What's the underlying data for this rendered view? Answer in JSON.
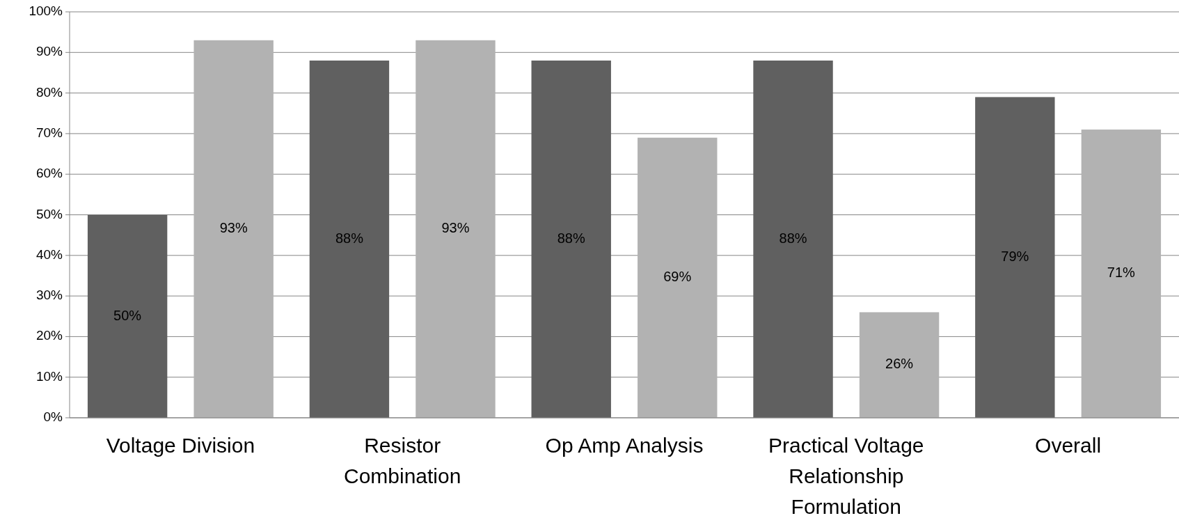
{
  "chart_data": {
    "type": "bar",
    "categories": [
      "Voltage Division",
      "Resistor Combination",
      "Op Amp Analysis",
      "Practical Voltage Relationship Formulation",
      "Overall"
    ],
    "series": [
      {
        "color": "#606060",
        "values": [
          50,
          88,
          88,
          88,
          79
        ],
        "value_labels": [
          "50%",
          "88%",
          "88%",
          "88%",
          "79%"
        ]
      },
      {
        "color": "#b2b2b2",
        "values": [
          93,
          93,
          69,
          26,
          71
        ],
        "value_labels": [
          "93%",
          "93%",
          "69%",
          "26%",
          "71%"
        ]
      }
    ],
    "ylim": [
      0,
      100
    ],
    "yticks": [
      {
        "value": 0,
        "label": "0%"
      },
      {
        "value": 10,
        "label": "10%"
      },
      {
        "value": 20,
        "label": "20%"
      },
      {
        "value": 30,
        "label": "30%"
      },
      {
        "value": 40,
        "label": "40%"
      },
      {
        "value": 50,
        "label": "50%"
      },
      {
        "value": 60,
        "label": "60%"
      },
      {
        "value": 70,
        "label": "70%"
      },
      {
        "value": 80,
        "label": "80%"
      },
      {
        "value": 90,
        "label": "90%"
      },
      {
        "value": 100,
        "label": "100%"
      }
    ],
    "grid": "y"
  }
}
